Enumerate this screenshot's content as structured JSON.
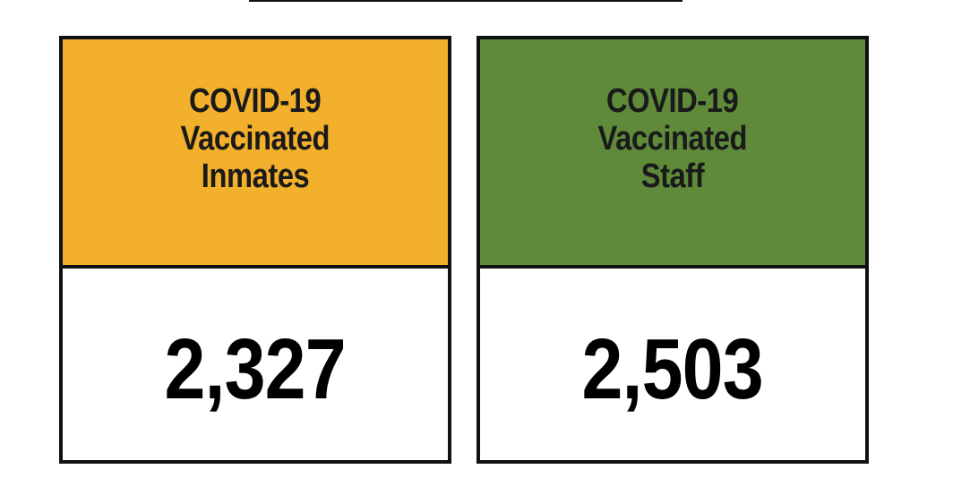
{
  "colors": {
    "inmates_header": "#f2b02c",
    "staff_header": "#5e8a3a",
    "border": "#111111",
    "background": "#ffffff"
  },
  "cards": {
    "inmates": {
      "header_lines": [
        "COVID-19",
        "Vaccinated",
        "Inmates"
      ],
      "value": "2,327"
    },
    "staff": {
      "header_lines": [
        "COVID-19",
        "Vaccinated",
        "Staff"
      ],
      "value": "2,503"
    }
  }
}
